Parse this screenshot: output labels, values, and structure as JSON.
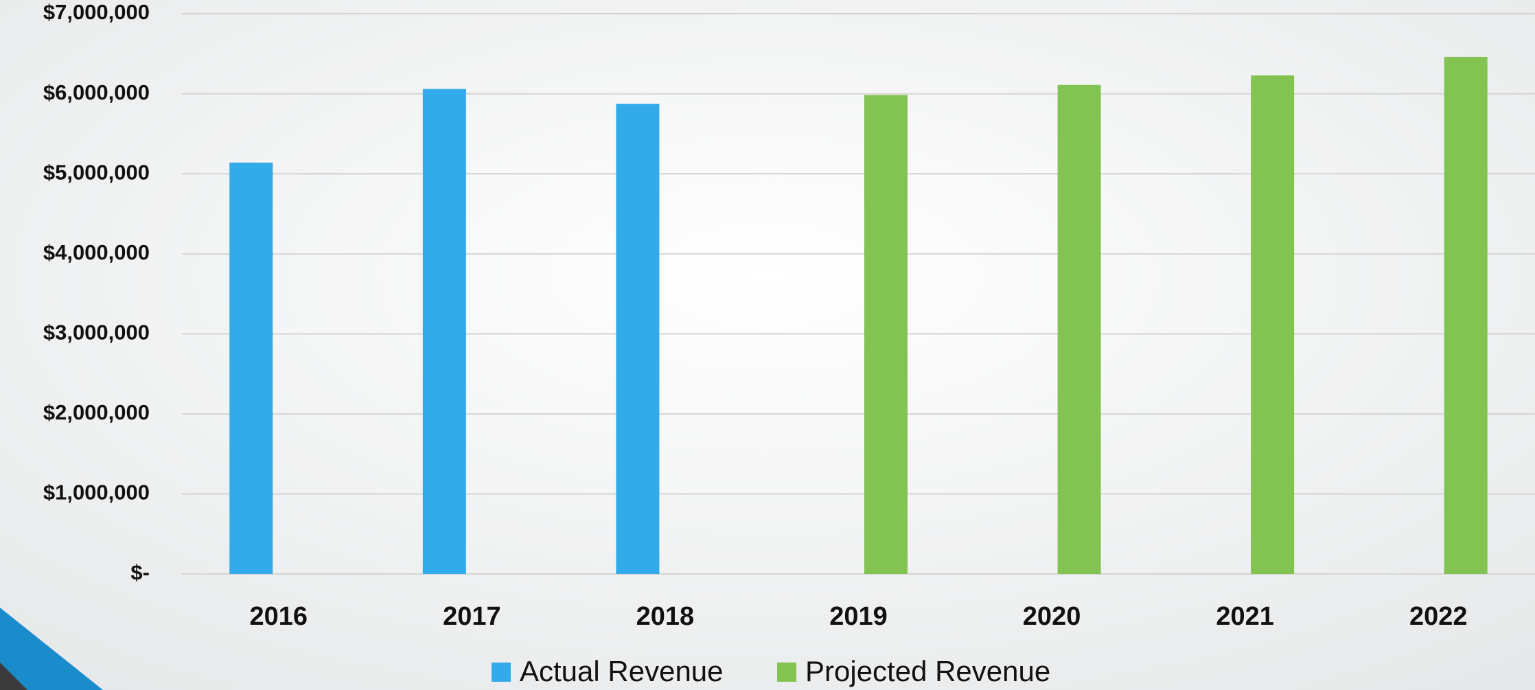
{
  "chart_data": {
    "type": "bar",
    "categories": [
      "2016",
      "2017",
      "2018",
      "2019",
      "2020",
      "2021",
      "2022"
    ],
    "series": [
      {
        "name": "Actual Revenue",
        "color": "#33abeb",
        "values": [
          5140000,
          6060000,
          5875000,
          null,
          null,
          null,
          null
        ]
      },
      {
        "name": "Projected Revenue",
        "color": "#82c351",
        "values": [
          null,
          null,
          null,
          5985000,
          6110000,
          6230000,
          6460000
        ]
      }
    ],
    "ylim": [
      0,
      7000000
    ],
    "yticks": [
      {
        "value": 0,
        "label": "$-"
      },
      {
        "value": 1000000,
        "label": "$1,000,000"
      },
      {
        "value": 2000000,
        "label": "$2,000,000"
      },
      {
        "value": 3000000,
        "label": "$3,000,000"
      },
      {
        "value": 4000000,
        "label": "$4,000,000"
      },
      {
        "value": 5000000,
        "label": "$5,000,000"
      },
      {
        "value": 6000000,
        "label": "$6,000,000"
      },
      {
        "value": 7000000,
        "label": "$7,000,000"
      }
    ],
    "grid": true,
    "legend": "bottom"
  }
}
